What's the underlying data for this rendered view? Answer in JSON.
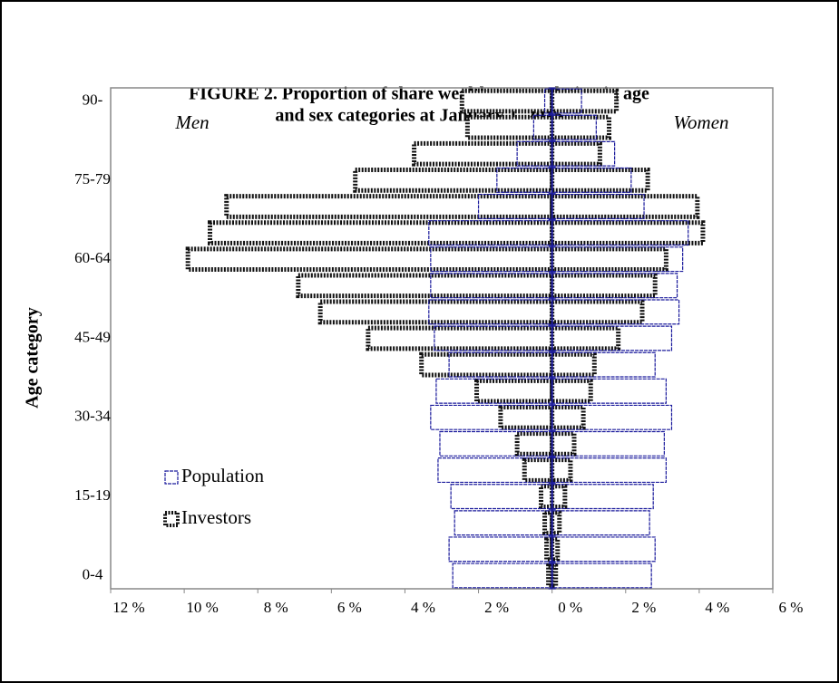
{
  "chart_data": {
    "type": "pyramid",
    "title": [
      "FIGURE 2. Proportion of share wealth or population in age",
      "and sex categories at January 1, 2015"
    ],
    "y_label": "Age category",
    "annotations": [
      "Men",
      "Women"
    ],
    "categories": [
      "0-4",
      null,
      null,
      "15-19",
      null,
      null,
      "30-34",
      null,
      null,
      "45-49",
      null,
      null,
      "60-64",
      null,
      null,
      "75-79",
      null,
      null,
      "90-"
    ],
    "series": [
      {
        "name": "Investors",
        "color": "#111111",
        "men": [
          0.1,
          0.15,
          0.2,
          0.3,
          0.75,
          0.95,
          1.4,
          2.05,
          3.55,
          5.0,
          6.3,
          6.9,
          9.9,
          9.3,
          8.85,
          5.35,
          3.75,
          2.3,
          2.45
        ],
        "women": [
          0.1,
          0.15,
          0.2,
          0.35,
          0.5,
          0.6,
          0.85,
          1.05,
          1.15,
          1.8,
          2.45,
          2.8,
          3.1,
          4.1,
          3.95,
          2.6,
          1.3,
          1.55,
          1.75
        ]
      },
      {
        "name": "Population",
        "color": "#1a1a9c",
        "men": [
          2.7,
          2.8,
          2.65,
          2.75,
          3.1,
          3.05,
          3.3,
          3.15,
          2.8,
          3.2,
          3.35,
          3.3,
          3.3,
          3.35,
          2.0,
          1.5,
          0.95,
          0.5,
          0.2
        ],
        "women": [
          2.7,
          2.8,
          2.65,
          2.75,
          3.1,
          3.05,
          3.25,
          3.1,
          2.8,
          3.25,
          3.45,
          3.4,
          3.55,
          3.7,
          2.5,
          2.15,
          1.7,
          1.2,
          0.8
        ]
      }
    ],
    "xlim": [
      -12,
      6
    ],
    "xticks": [
      {
        "value": -12,
        "label": "12 %"
      },
      {
        "value": -10,
        "label": "10 %"
      },
      {
        "value": -8,
        "label": "8 %"
      },
      {
        "value": -6,
        "label": "6 %"
      },
      {
        "value": -4,
        "label": "4 %"
      },
      {
        "value": -2,
        "label": "2 %"
      },
      {
        "value": 0,
        "label": "0 %"
      },
      {
        "value": 2,
        "label": "2 %"
      },
      {
        "value": 4,
        "label": "4 %"
      },
      {
        "value": 6,
        "label": "6 %"
      }
    ],
    "legend": "lower-left"
  }
}
